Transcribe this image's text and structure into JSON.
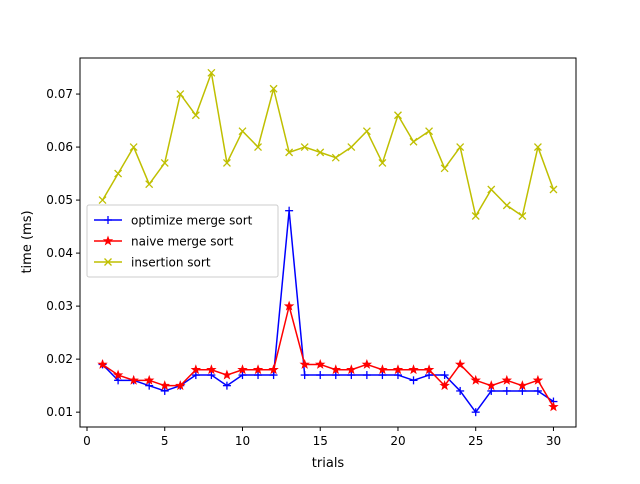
{
  "chart_data": {
    "type": "line",
    "title": "",
    "xlabel": "trials",
    "ylabel": "time (ms)",
    "xlim": [
      -0.45,
      31.45
    ],
    "ylim": [
      0.0072,
      0.0768
    ],
    "xticks": [
      0,
      5,
      10,
      15,
      20,
      25,
      30
    ],
    "xtick_labels": [
      "0",
      "5",
      "10",
      "15",
      "20",
      "25",
      "30"
    ],
    "yticks": [
      0.01,
      0.02,
      0.03,
      0.04,
      0.05,
      0.06,
      0.07
    ],
    "ytick_labels": [
      "0.01",
      "0.02",
      "0.03",
      "0.04",
      "0.05",
      "0.06",
      "0.07"
    ],
    "grid": false,
    "legend_position": "center-left",
    "x": [
      1,
      2,
      3,
      4,
      5,
      6,
      7,
      8,
      9,
      10,
      11,
      12,
      13,
      14,
      15,
      16,
      17,
      18,
      19,
      20,
      21,
      22,
      23,
      24,
      25,
      26,
      27,
      28,
      29,
      30
    ],
    "series": [
      {
        "name": "optimize merge sort",
        "color": "#0000ff",
        "marker": "plus",
        "values": [
          0.019,
          0.016,
          0.016,
          0.015,
          0.014,
          0.015,
          0.017,
          0.017,
          0.015,
          0.017,
          0.017,
          0.017,
          0.048,
          0.017,
          0.017,
          0.017,
          0.017,
          0.017,
          0.017,
          0.017,
          0.016,
          0.017,
          0.017,
          0.014,
          0.01,
          0.014,
          0.014,
          0.014,
          0.014,
          0.012
        ]
      },
      {
        "name": "naive merge sort",
        "color": "#ff0000",
        "marker": "star",
        "values": [
          0.019,
          0.017,
          0.016,
          0.016,
          0.015,
          0.015,
          0.018,
          0.018,
          0.017,
          0.018,
          0.018,
          0.018,
          0.03,
          0.019,
          0.019,
          0.018,
          0.018,
          0.019,
          0.018,
          0.018,
          0.018,
          0.018,
          0.015,
          0.019,
          0.016,
          0.015,
          0.016,
          0.015,
          0.016,
          0.011
        ]
      },
      {
        "name": "insertion sort",
        "color": "#bfbf00",
        "marker": "x",
        "values": [
          0.05,
          0.055,
          0.06,
          0.053,
          0.057,
          0.07,
          0.066,
          0.074,
          0.057,
          0.063,
          0.06,
          0.071,
          0.059,
          0.06,
          0.059,
          0.058,
          0.06,
          0.063,
          0.057,
          0.066,
          0.061,
          0.063,
          0.056,
          0.06,
          0.047,
          0.052,
          0.049,
          0.047,
          0.06,
          0.052
        ]
      }
    ]
  }
}
